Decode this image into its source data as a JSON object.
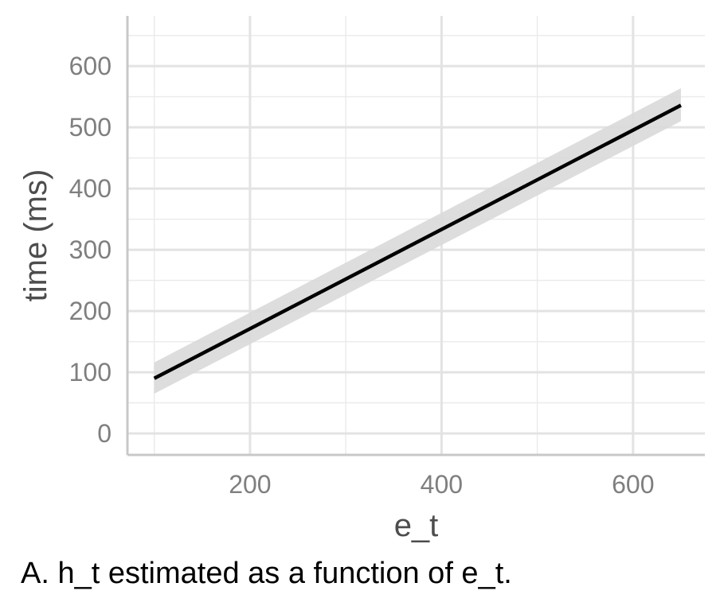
{
  "chart_data": {
    "type": "line",
    "xlabel": "e_t",
    "ylabel": "time (ms)",
    "xlim": [
      72,
      675
    ],
    "ylim": [
      -35,
      682
    ],
    "xticks": [
      200,
      400,
      600
    ],
    "yticks": [
      0,
      100,
      200,
      300,
      400,
      500,
      600
    ],
    "x_minor_gridlines": [
      100,
      300,
      500
    ],
    "y_minor_gridlines": [
      50,
      150,
      250,
      350,
      450,
      550,
      650
    ],
    "grid": true,
    "series": [
      {
        "x": [
          100,
          650
        ],
        "y": [
          90,
          536
        ],
        "ci_lower": [
          65,
          510
        ],
        "ci_upper": [
          116,
          564
        ],
        "color": "#000000",
        "band_color": "#d9d9d9"
      }
    ]
  },
  "caption": "A.  h_t estimated as a function of e_t."
}
